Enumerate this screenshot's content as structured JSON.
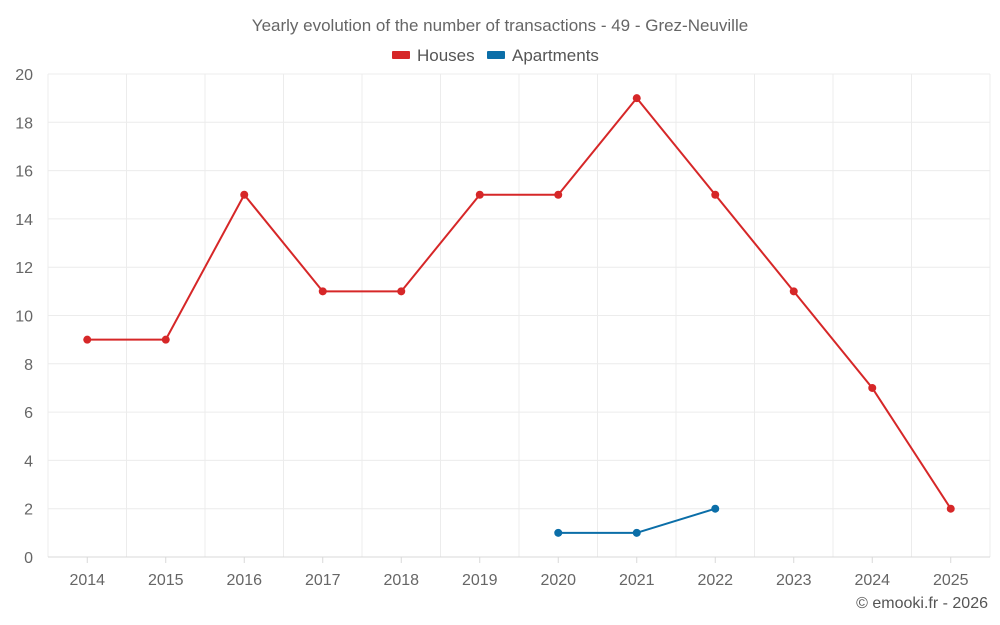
{
  "chart_data": {
    "type": "line",
    "title": "Yearly evolution of the number of transactions - 49 - Grez-Neuville",
    "categories": [
      "2014",
      "2015",
      "2016",
      "2017",
      "2018",
      "2019",
      "2020",
      "2021",
      "2022",
      "2023",
      "2024",
      "2025"
    ],
    "series": [
      {
        "name": "Houses",
        "color": "#d62728",
        "values": [
          9,
          9,
          15,
          11,
          11,
          15,
          15,
          19,
          15,
          11,
          7,
          2
        ]
      },
      {
        "name": "Apartments",
        "color": "#0b6ea8",
        "values": [
          null,
          null,
          null,
          null,
          null,
          null,
          1,
          1,
          2,
          null,
          null,
          null
        ]
      }
    ],
    "ylim": [
      0,
      20
    ],
    "yticks": [
      0,
      2,
      4,
      6,
      8,
      10,
      12,
      14,
      16,
      18,
      20
    ],
    "grid": true,
    "legend_position": "top-center",
    "xlabel": "",
    "ylabel": ""
  },
  "footer": {
    "copyright": "© emooki.fr - 2026"
  }
}
